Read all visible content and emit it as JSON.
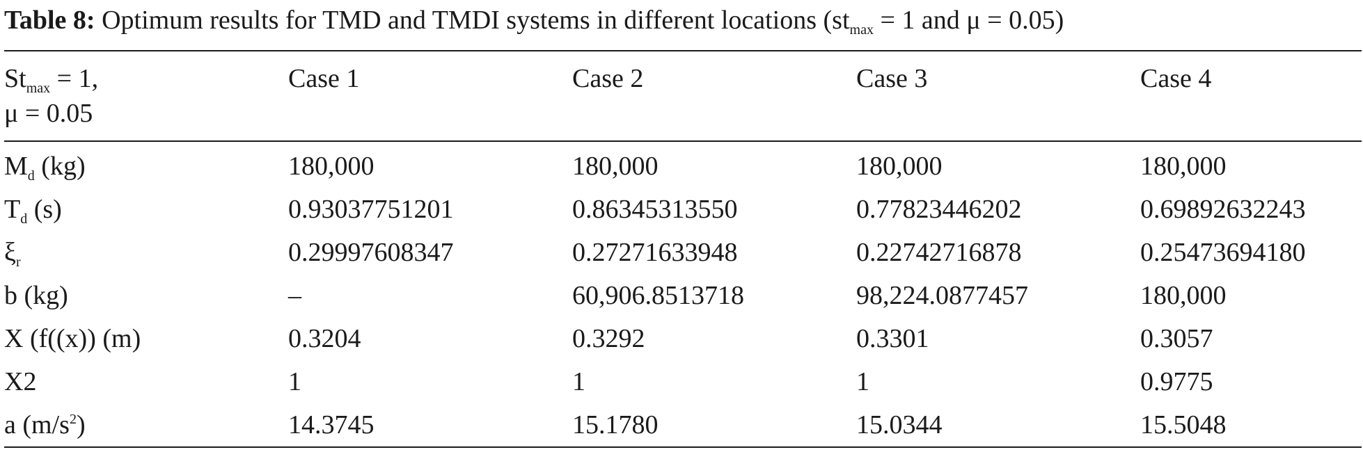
{
  "caption": {
    "label": "Table 8:",
    "text_before": " Optimum results for TMD and TMDI systems in different locations (st",
    "sub": "max",
    "text_after": " = 1 and μ = 0.05)"
  },
  "header": {
    "param_line1_main": "St",
    "param_line1_sub": "max",
    "param_line1_rest": " = 1,",
    "param_line2": "μ = 0.05",
    "cases": [
      "Case 1",
      "Case 2",
      "Case 3",
      "Case 4"
    ]
  },
  "rows": [
    {
      "label_main": "M",
      "label_sub": "d",
      "label_rest": " (kg)",
      "values": [
        "180,000",
        "180,000",
        "180,000",
        "180,000"
      ]
    },
    {
      "label_main": "T",
      "label_sub": "d",
      "label_rest": " (s)",
      "values": [
        "0.93037751201",
        "0.86345313550",
        "0.77823446202",
        "0.69892632243"
      ]
    },
    {
      "label_main": "ξ",
      "label_sub": "r",
      "label_rest": "",
      "values": [
        "0.29997608347",
        "0.27271633948",
        "0.22742716878",
        "0.25473694180"
      ]
    },
    {
      "label_main": "b (kg)",
      "label_sub": "",
      "label_rest": "",
      "values": [
        "–",
        "60,906.8513718",
        "98,224.0877457",
        "180,000"
      ]
    },
    {
      "label_main": "X (f((x)) (m)",
      "label_sub": "",
      "label_rest": "",
      "values": [
        "0.3204",
        "0.3292",
        "0.3301",
        "0.3057"
      ]
    },
    {
      "label_main": "X2",
      "label_sub": "",
      "label_rest": "",
      "values": [
        "1",
        "1",
        "1",
        "0.9775"
      ]
    },
    {
      "label_main": "a (m/s",
      "label_sup": "2",
      "label_rest": ")",
      "values": [
        "14.3745",
        "15.1780",
        "15.0344",
        "15.5048"
      ]
    }
  ]
}
